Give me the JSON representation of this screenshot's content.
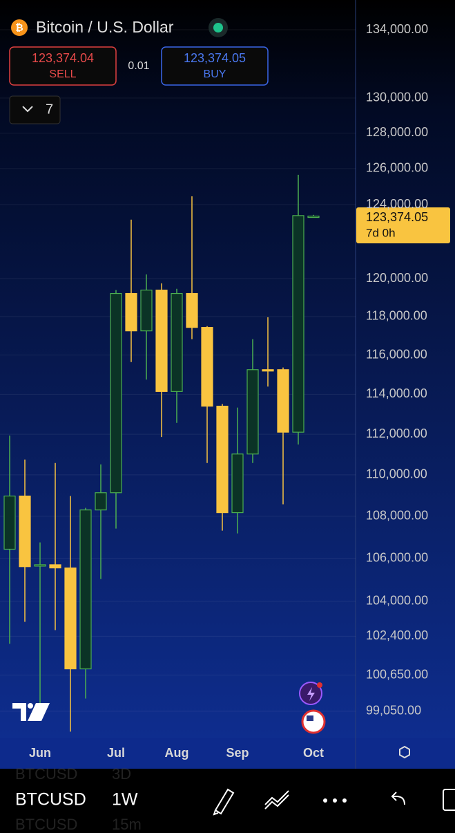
{
  "header": {
    "title": "Bitcoin / U.S. Dollar",
    "sell_price": "123,374.04",
    "sell_label": "SELL",
    "spread": "0.01",
    "buy_price": "123,374.05",
    "buy_label": "BUY",
    "collapse_count": "7"
  },
  "chart_data": {
    "type": "candlestick",
    "log_scale": true,
    "grid": true,
    "up_color": "#4caf50",
    "down_color": "#f9c440",
    "categories": [
      null,
      null,
      "Jun",
      null,
      null,
      null,
      null,
      "Jul",
      null,
      null,
      null,
      "Aug",
      null,
      null,
      null,
      "Sep",
      null,
      null,
      null,
      null,
      "Oct"
    ],
    "open": [
      106430,
      108970,
      105680,
      105700,
      105550,
      100930,
      108300,
      109130,
      119210,
      117250,
      119390,
      114140,
      119210,
      117430,
      113400,
      108170,
      111020,
      115250,
      115250,
      112100,
      123300
    ],
    "high": [
      111930,
      110750,
      106750,
      110580,
      108970,
      108400,
      110510,
      119390,
      123180,
      120220,
      119750,
      119460,
      124460,
      117500,
      113510,
      113330,
      116820,
      117960,
      115360,
      125650,
      123440
    ],
    "low": [
      102060,
      103060,
      98710,
      102680,
      98160,
      99610,
      105030,
      107410,
      115640,
      114750,
      111860,
      112560,
      116820,
      110580,
      107310,
      107180,
      110580,
      114390,
      108570,
      111490,
      123300
    ],
    "close": [
      108970,
      105610,
      105700,
      105550,
      100930,
      108300,
      109130,
      119210,
      117250,
      119390,
      114140,
      119210,
      117430,
      113400,
      108170,
      111020,
      115250,
      115180,
      112100,
      123400,
      123374.05
    ],
    "ylim": [
      97930,
      135780
    ],
    "yticks": [
      {
        "value": 134000,
        "label": "134,000.00"
      },
      {
        "value": 130000,
        "label": "130,000.00"
      },
      {
        "value": 128000,
        "label": "128,000.00"
      },
      {
        "value": 126000,
        "label": "126,000.00"
      },
      {
        "value": 124000,
        "label": "124,000.00"
      },
      {
        "value": 120000,
        "label": "120,000.00"
      },
      {
        "value": 118000,
        "label": "118,000.00"
      },
      {
        "value": 116000,
        "label": "116,000.00"
      },
      {
        "value": 114000,
        "label": "114,000.00"
      },
      {
        "value": 112000,
        "label": "112,000.00"
      },
      {
        "value": 110000,
        "label": "110,000.00"
      },
      {
        "value": 108000,
        "label": "108,000.00"
      },
      {
        "value": 106000,
        "label": "106,000.00"
      },
      {
        "value": 104000,
        "label": "104,000.00"
      },
      {
        "value": 102400,
        "label": "102,400.00"
      },
      {
        "value": 100650,
        "label": "100,650.00"
      },
      {
        "value": 99050,
        "label": "99,050.00"
      }
    ],
    "price_tag": "123,374.05",
    "price_timer": "7d 0h"
  },
  "toolbar": {
    "symbol": "BTCUSD",
    "interval": "1W",
    "prev_symbol": "BTCUSD",
    "prev_interval": "3D",
    "next_symbol": "BTCUSD",
    "next_interval": "15m"
  }
}
